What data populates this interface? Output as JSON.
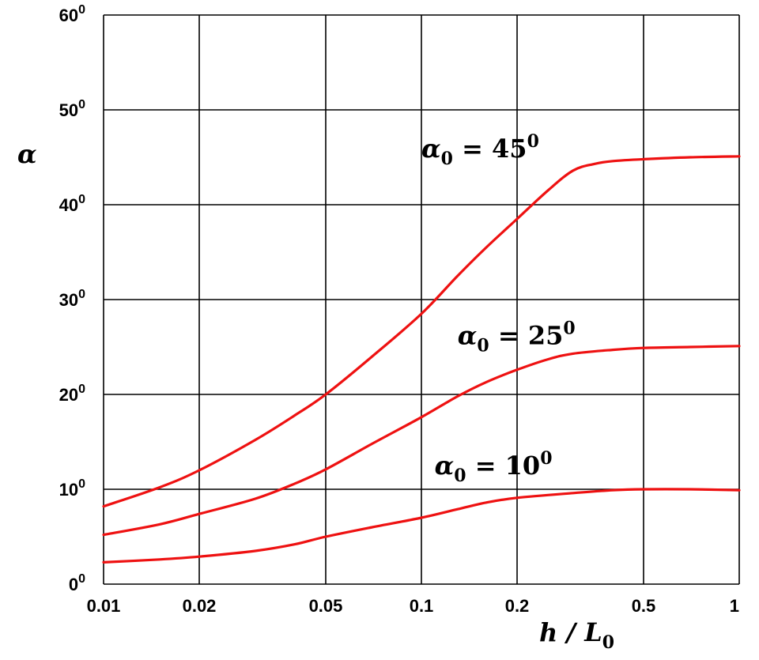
{
  "chart_data": {
    "type": "line",
    "xscale": "log",
    "xlim": [
      0.01,
      1
    ],
    "ylim": [
      0,
      60
    ],
    "grid": true,
    "xticks": [
      0.01,
      0.02,
      0.05,
      0.1,
      0.2,
      0.5,
      1
    ],
    "xtick_labels": [
      "0.01",
      "0.02",
      "0.05",
      "0.1",
      "0.2",
      "0.5",
      "1"
    ],
    "yticks": [
      0,
      10,
      20,
      30,
      40,
      50,
      60
    ],
    "ytick_labels": [
      {
        "base": "0",
        "sup": "0"
      },
      {
        "base": "10",
        "sup": "0"
      },
      {
        "base": "20",
        "sup": "0"
      },
      {
        "base": "30",
        "sup": "0"
      },
      {
        "base": "40",
        "sup": "0"
      },
      {
        "base": "50",
        "sup": "0"
      },
      {
        "base": "60",
        "sup": "0"
      }
    ],
    "ylabel": "α",
    "xlabel": {
      "pre": "h / L",
      "sub": "0"
    },
    "line_color": "#ee1111",
    "series": [
      {
        "label": {
          "sym": "α",
          "sub": "0",
          "eq": " = 45",
          "sup": "0"
        },
        "label_at": [
          0.1,
          45
        ],
        "x": [
          0.01,
          0.015,
          0.02,
          0.03,
          0.04,
          0.05,
          0.07,
          0.1,
          0.13,
          0.16,
          0.2,
          0.25,
          0.3,
          0.35,
          0.4,
          0.5,
          0.7,
          1.0
        ],
        "y": [
          8.2,
          10.2,
          12.0,
          15.2,
          17.8,
          20.0,
          24.0,
          28.5,
          32.5,
          35.5,
          38.5,
          41.5,
          43.6,
          44.3,
          44.6,
          44.8,
          45.0,
          45.1
        ]
      },
      {
        "label": {
          "sym": "α",
          "sub": "0",
          "eq": " = 25",
          "sup": "0"
        },
        "label_at": [
          0.13,
          25.3
        ],
        "x": [
          0.01,
          0.015,
          0.02,
          0.03,
          0.04,
          0.05,
          0.07,
          0.1,
          0.13,
          0.16,
          0.2,
          0.25,
          0.3,
          0.4,
          0.5,
          0.7,
          1.0
        ],
        "y": [
          5.2,
          6.3,
          7.4,
          9.0,
          10.6,
          12.1,
          14.8,
          17.6,
          19.8,
          21.3,
          22.6,
          23.7,
          24.3,
          24.7,
          24.9,
          25.0,
          25.1
        ]
      },
      {
        "label": {
          "sym": "α",
          "sub": "0",
          "eq": " = 10",
          "sup": "0"
        },
        "label_at": [
          0.11,
          11.6
        ],
        "x": [
          0.01,
          0.015,
          0.02,
          0.03,
          0.04,
          0.05,
          0.07,
          0.1,
          0.13,
          0.16,
          0.2,
          0.3,
          0.4,
          0.5,
          0.7,
          1.0
        ],
        "y": [
          2.3,
          2.6,
          2.9,
          3.5,
          4.2,
          5.0,
          6.0,
          7.0,
          7.9,
          8.6,
          9.1,
          9.6,
          9.9,
          10.0,
          10.0,
          9.9
        ]
      }
    ]
  }
}
